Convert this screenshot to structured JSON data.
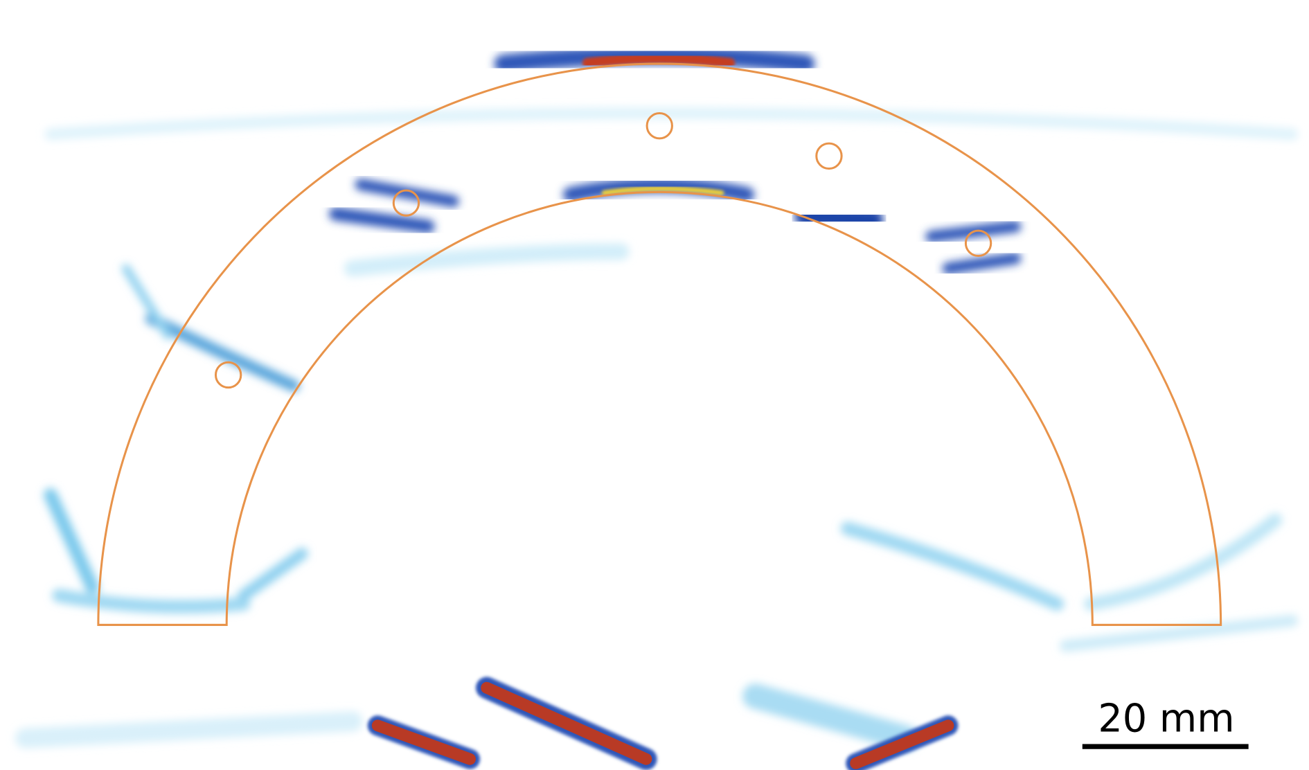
{
  "scale_bar": {
    "label": "20 mm"
  }
}
